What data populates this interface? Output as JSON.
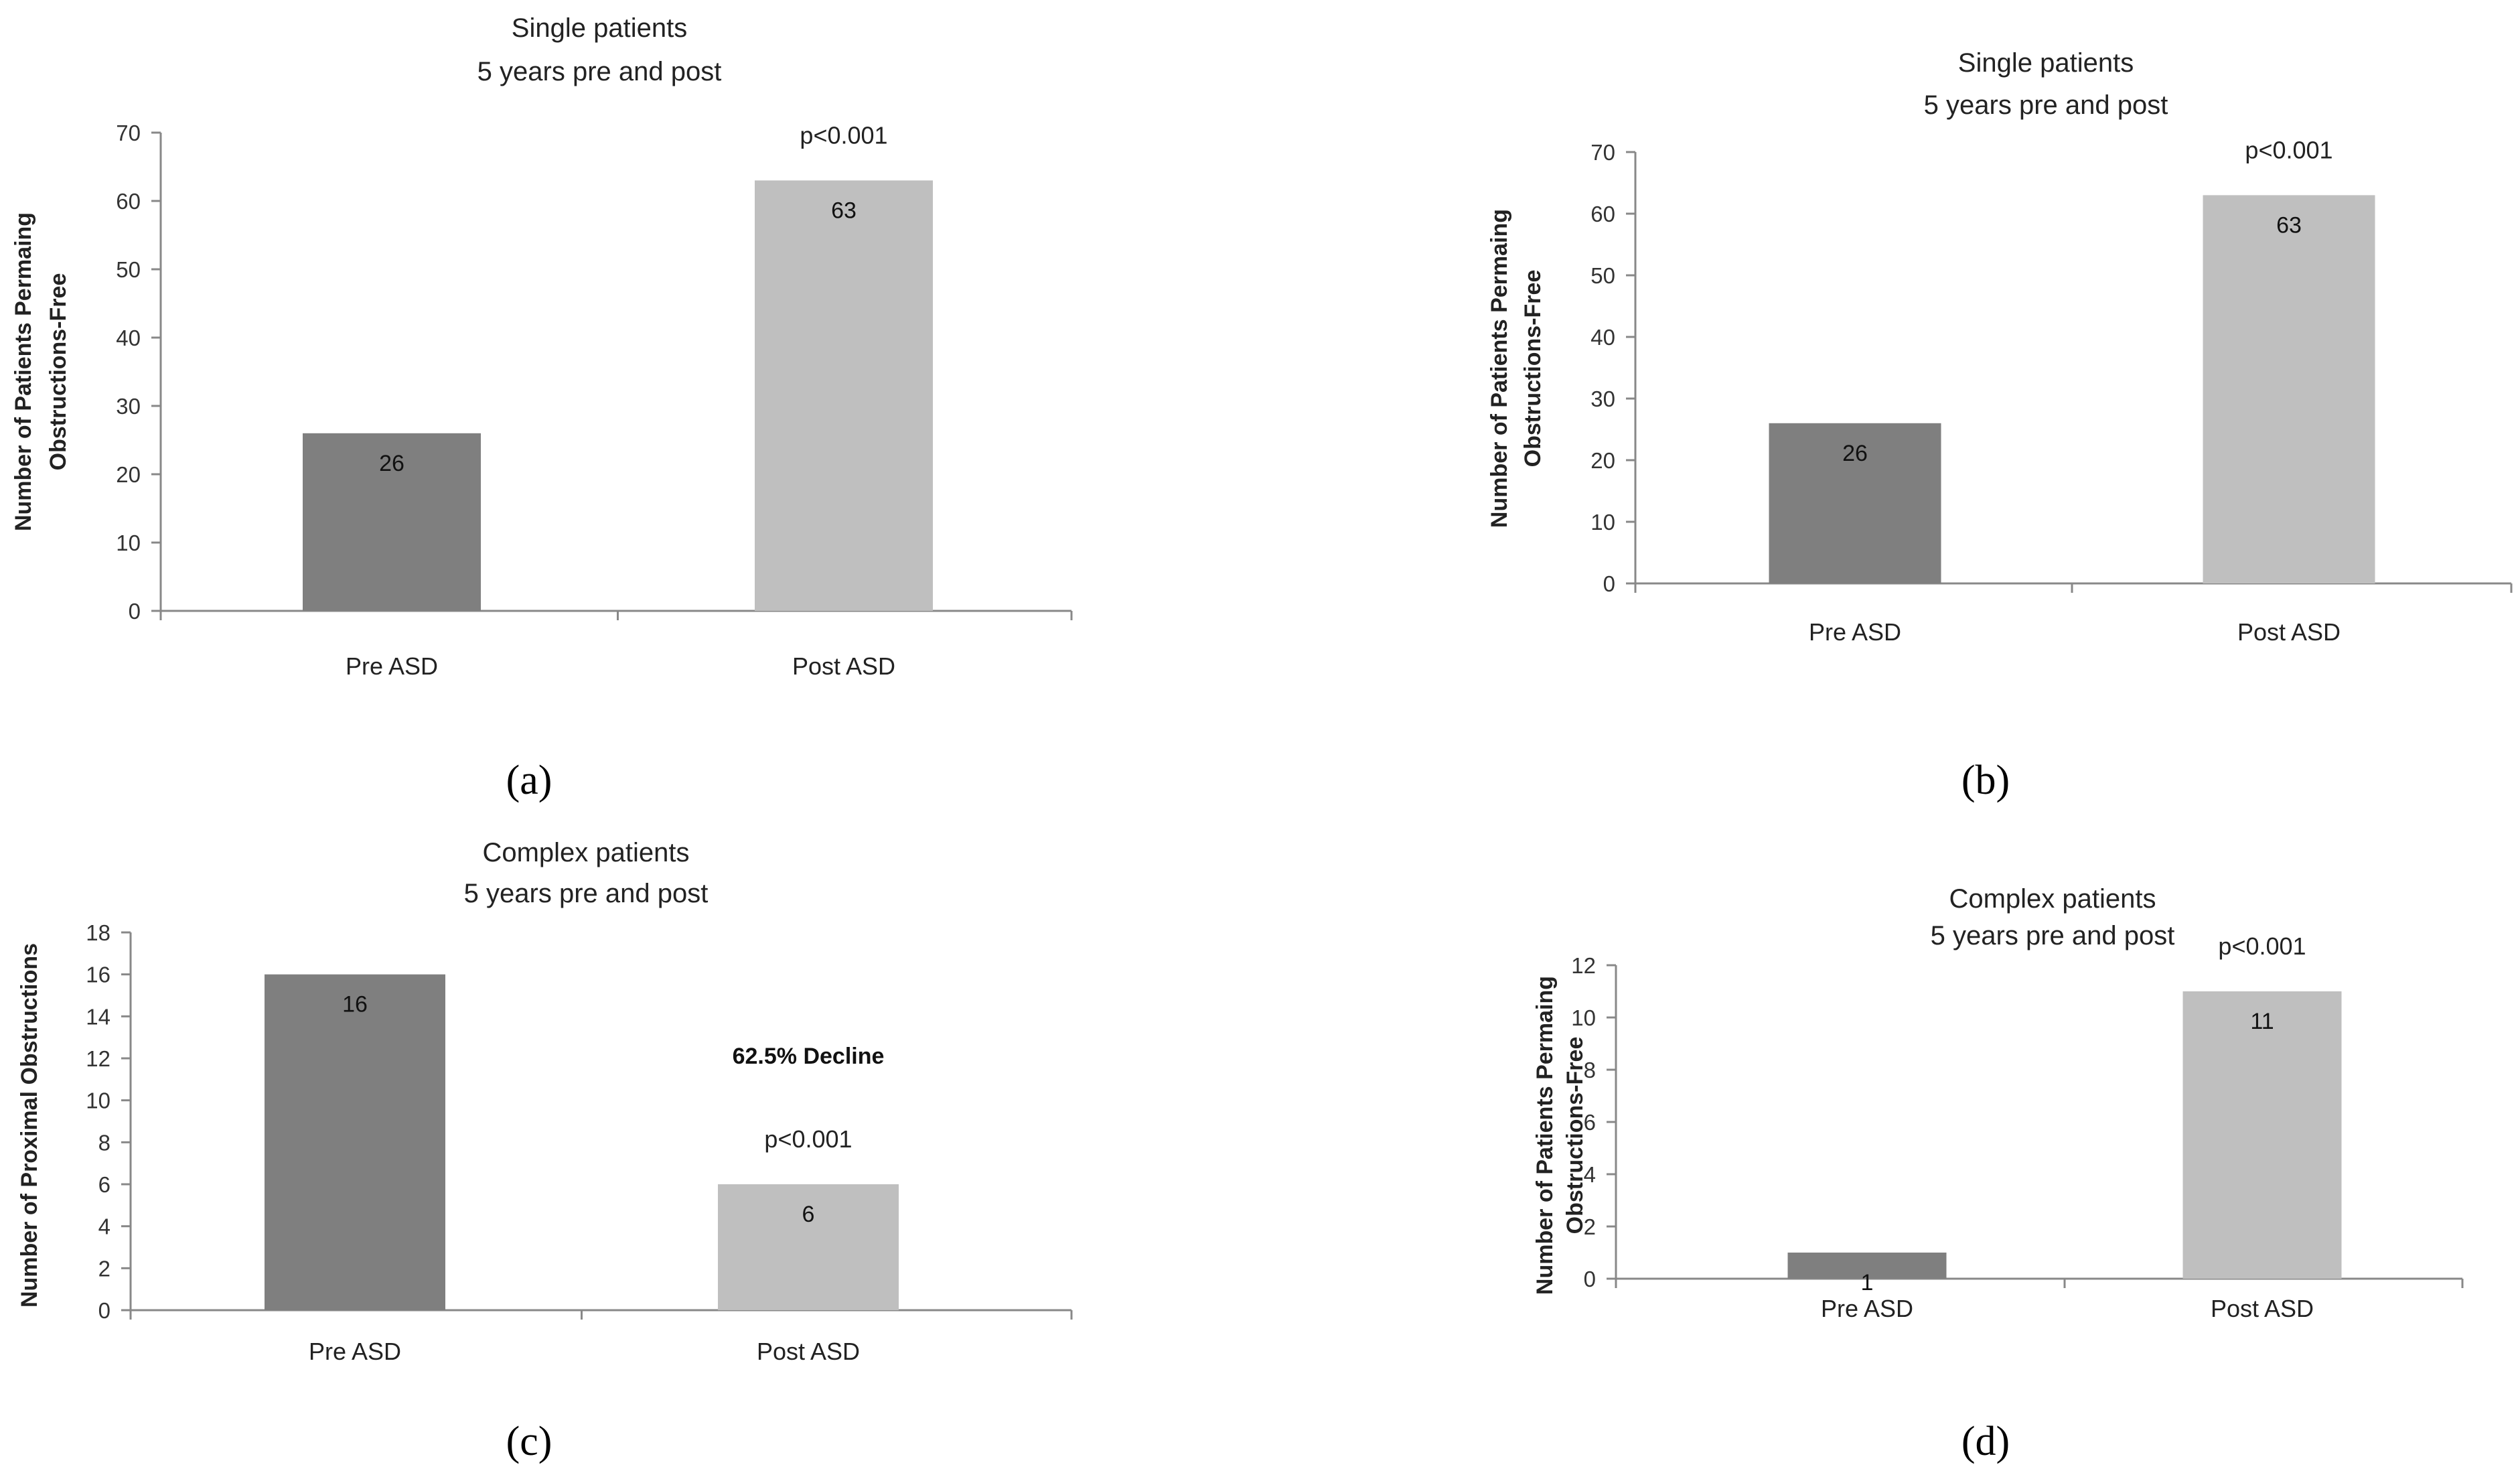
{
  "chart_data": [
    {
      "panel": "(a)",
      "type": "bar",
      "title_lines": [
        "Single patients",
        "5 years pre and post"
      ],
      "ylabel_lines": [
        "Number of Patients Permaing",
        "Obstructions-Free"
      ],
      "categories": [
        "Pre ASD",
        "Post ASD"
      ],
      "values": [
        26,
        63
      ],
      "data_labels": [
        "26",
        "63"
      ],
      "colors": [
        "#7f7f7f",
        "#bfbfbf"
      ],
      "ylim": [
        0,
        70
      ],
      "yticks": [
        "0",
        "10",
        "20",
        "30",
        "40",
        "50",
        "60",
        "70"
      ],
      "annotations": [
        {
          "text": "p<0.001",
          "category_index": 1,
          "bold": false
        }
      ],
      "grid": false
    },
    {
      "panel": "(b)",
      "type": "bar",
      "title_lines": [
        "Single patients",
        "5 years pre and post"
      ],
      "ylabel_lines": [
        "Number of Patients Permaing",
        "Obstructions-Free"
      ],
      "categories": [
        "Pre ASD",
        "Post ASD"
      ],
      "values": [
        26,
        63
      ],
      "data_labels": [
        "26",
        "63"
      ],
      "colors": [
        "#7f7f7f",
        "#bfbfbf"
      ],
      "ylim": [
        0,
        70
      ],
      "yticks": [
        "0",
        "10",
        "20",
        "30",
        "40",
        "50",
        "60",
        "70"
      ],
      "annotations": [
        {
          "text": "p<0.001",
          "category_index": 1,
          "bold": false
        }
      ],
      "grid": false
    },
    {
      "panel": "(c)",
      "type": "bar",
      "title_lines": [
        "Complex patients",
        "5 years pre and post"
      ],
      "ylabel_lines": [
        "Number of Proximal Obstructions"
      ],
      "categories": [
        "Pre ASD",
        "Post ASD"
      ],
      "values": [
        16,
        6
      ],
      "data_labels": [
        "16",
        "6"
      ],
      "colors": [
        "#7f7f7f",
        "#bfbfbf"
      ],
      "ylim": [
        0,
        18
      ],
      "yticks": [
        "0",
        "2",
        "4",
        "6",
        "8",
        "10",
        "12",
        "14",
        "16",
        "18"
      ],
      "annotations": [
        {
          "text": "62.5% Decline",
          "category_index": 1,
          "bold": true
        },
        {
          "text": "p<0.001",
          "category_index": 1,
          "bold": false
        }
      ],
      "grid": false
    },
    {
      "panel": "(d)",
      "type": "bar",
      "title_lines": [
        "Complex patients",
        "5 years pre and post"
      ],
      "ylabel_lines": [
        "Number of Patients Permaing",
        "Obstructions-Free"
      ],
      "categories": [
        "Pre ASD",
        "Post ASD"
      ],
      "values": [
        1,
        11
      ],
      "data_labels": [
        "1",
        "11"
      ],
      "colors": [
        "#7f7f7f",
        "#bfbfbf"
      ],
      "ylim": [
        0,
        12
      ],
      "yticks": [
        "0",
        "2",
        "4",
        "6",
        "8",
        "10",
        "12"
      ],
      "annotations": [
        {
          "text": "p<0.001",
          "category_index": 1,
          "bold": false
        }
      ],
      "grid": false
    }
  ]
}
